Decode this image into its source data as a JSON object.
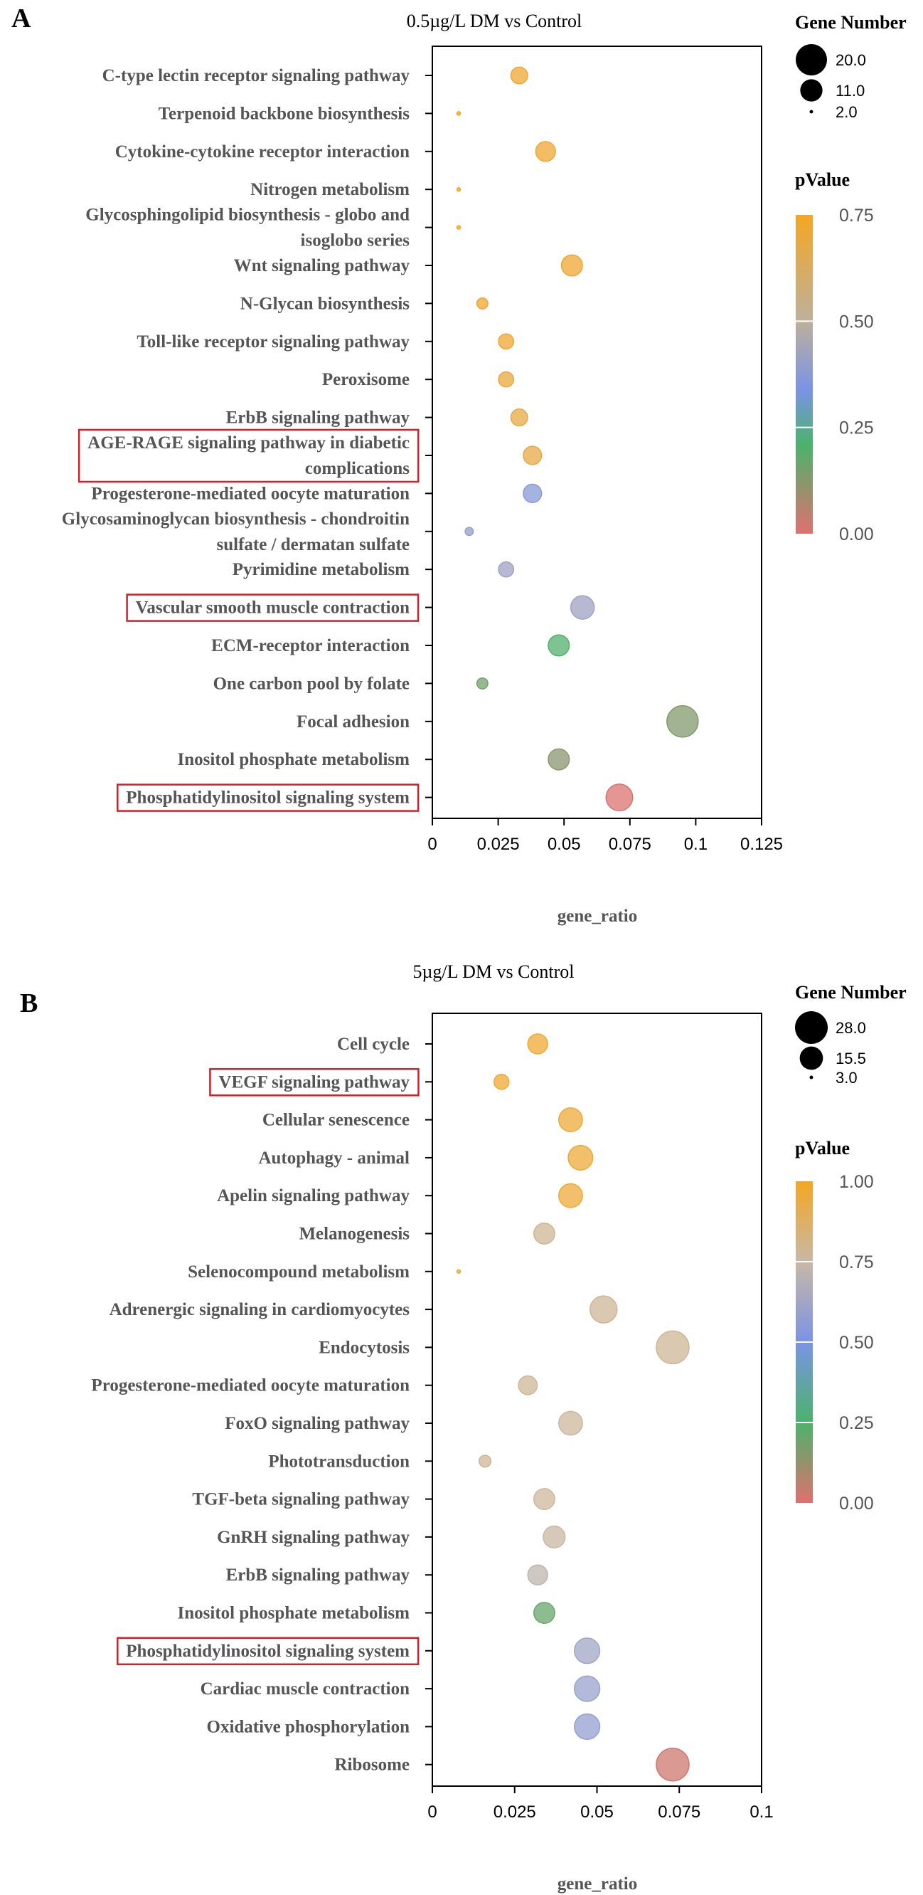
{
  "chart_data": [
    {
      "panel": "A",
      "type": "scatter",
      "title": "0.5µg/L DM vs Control",
      "xlabel": "gene_ratio",
      "xlim": [
        0,
        0.125
      ],
      "xticks": [
        "0",
        "0.025",
        "0.05",
        "0.075",
        "0.1",
        "0.125"
      ],
      "xtick_values": [
        0,
        0.025,
        0.05,
        0.075,
        0.1,
        0.125
      ],
      "size_legend": {
        "title": "Gene Number",
        "values": [
          20,
          11,
          2
        ],
        "labels": [
          "20.0",
          "11.0",
          "2.0"
        ]
      },
      "color_legend": {
        "title": "pValue",
        "min": 0,
        "max": 0.75,
        "labels": [
          "0.75",
          "0.50",
          "0.25",
          "0.00"
        ],
        "label_values": [
          0.75,
          0.5,
          0.25,
          0
        ]
      },
      "points": [
        {
          "pathway": "C-type lectin receptor signaling pathway",
          "gene_ratio": 0.033,
          "gene_number": 7,
          "pvalue": 0.72
        },
        {
          "pathway": "Terpenoid backbone biosynthesis",
          "gene_ratio": 0.01,
          "gene_number": 2,
          "pvalue": 0.75
        },
        {
          "pathway": "Cytokine-cytokine receptor interaction",
          "gene_ratio": 0.043,
          "gene_number": 9,
          "pvalue": 0.72
        },
        {
          "pathway": "Nitrogen metabolism",
          "gene_ratio": 0.01,
          "gene_number": 2,
          "pvalue": 0.75
        },
        {
          "pathway": "Glycosphingolipid biosynthesis - globo and isoglobo series",
          "gene_ratio": 0.01,
          "gene_number": 2,
          "pvalue": 0.75
        },
        {
          "pathway": "Wnt signaling pathway",
          "gene_ratio": 0.053,
          "gene_number": 10,
          "pvalue": 0.72
        },
        {
          "pathway": "N-Glycan biosynthesis",
          "gene_ratio": 0.019,
          "gene_number": 4,
          "pvalue": 0.72
        },
        {
          "pathway": "Toll-like receptor signaling pathway",
          "gene_ratio": 0.028,
          "gene_number": 6,
          "pvalue": 0.72
        },
        {
          "pathway": "Peroxisome",
          "gene_ratio": 0.028,
          "gene_number": 6,
          "pvalue": 0.7
        },
        {
          "pathway": "ErbB signaling pathway",
          "gene_ratio": 0.033,
          "gene_number": 7,
          "pvalue": 0.68
        },
        {
          "pathway": "AGE-RAGE signaling pathway in diabetic complications",
          "gene_ratio": 0.038,
          "gene_number": 8,
          "pvalue": 0.68
        },
        {
          "pathway": "Progesterone-mediated oocyte maturation",
          "gene_ratio": 0.038,
          "gene_number": 8,
          "pvalue": 0.37
        },
        {
          "pathway": "Glycosaminoglycan biosynthesis - chondroitin sulfate / dermatan sulfate",
          "gene_ratio": 0.014,
          "gene_number": 3,
          "pvalue": 0.4
        },
        {
          "pathway": "Pyrimidine metabolism",
          "gene_ratio": 0.028,
          "gene_number": 6,
          "pvalue": 0.42
        },
        {
          "pathway": "Vascular smooth muscle contraction",
          "gene_ratio": 0.057,
          "gene_number": 12,
          "pvalue": 0.42
        },
        {
          "pathway": "ECM-receptor interaction",
          "gene_ratio": 0.048,
          "gene_number": 10,
          "pvalue": 0.2
        },
        {
          "pathway": "One carbon pool by folate",
          "gene_ratio": 0.019,
          "gene_number": 4,
          "pvalue": 0.15
        },
        {
          "pathway": "Focal adhesion",
          "gene_ratio": 0.095,
          "gene_number": 20,
          "pvalue": 0.13
        },
        {
          "pathway": "Inositol phosphate metabolism",
          "gene_ratio": 0.048,
          "gene_number": 10,
          "pvalue": 0.12
        },
        {
          "pathway": "Phosphatidylinositol signaling system",
          "gene_ratio": 0.071,
          "gene_number": 15,
          "pvalue": 0.01
        }
      ],
      "highlighted": [
        "AGE-RAGE signaling pathway in diabetic complications",
        "Vascular smooth muscle contraction",
        "Phosphatidylinositol signaling system"
      ]
    },
    {
      "panel": "B",
      "type": "scatter",
      "title": "5µg/L DM vs Control",
      "xlabel": "gene_ratio",
      "xlim": [
        0,
        0.1
      ],
      "xticks": [
        "0",
        "0.025",
        "0.05",
        "0.075",
        "0.1"
      ],
      "xtick_values": [
        0,
        0.025,
        0.05,
        0.075,
        0.1
      ],
      "size_legend": {
        "title": "Gene Number",
        "values": [
          28,
          15.5,
          3
        ],
        "labels": [
          "28.0",
          "15.5",
          "3.0"
        ]
      },
      "color_legend": {
        "title": "pValue",
        "min": 0,
        "max": 1,
        "labels": [
          "1.00",
          "0.75",
          "0.50",
          "0.25",
          "0.00"
        ],
        "label_values": [
          1,
          0.75,
          0.5,
          0.25,
          0
        ]
      },
      "points": [
        {
          "pathway": "Cell cycle",
          "gene_ratio": 0.032,
          "gene_number": 12,
          "pvalue": 0.97
        },
        {
          "pathway": "VEGF signaling pathway",
          "gene_ratio": 0.021,
          "gene_number": 8,
          "pvalue": 0.97
        },
        {
          "pathway": "Cellular senescence",
          "gene_ratio": 0.042,
          "gene_number": 16,
          "pvalue": 0.96
        },
        {
          "pathway": "Autophagy - animal",
          "gene_ratio": 0.045,
          "gene_number": 17,
          "pvalue": 0.96
        },
        {
          "pathway": "Apelin signaling pathway",
          "gene_ratio": 0.042,
          "gene_number": 16,
          "pvalue": 0.96
        },
        {
          "pathway": "Melanogenesis",
          "gene_ratio": 0.034,
          "gene_number": 13,
          "pvalue": 0.78
        },
        {
          "pathway": "Selenocompound metabolism",
          "gene_ratio": 0.008,
          "gene_number": 3,
          "pvalue": 0.95
        },
        {
          "pathway": "Adrenergic signaling in cardiomyocytes",
          "gene_ratio": 0.052,
          "gene_number": 20,
          "pvalue": 0.78
        },
        {
          "pathway": "Endocytosis",
          "gene_ratio": 0.073,
          "gene_number": 28,
          "pvalue": 0.78
        },
        {
          "pathway": "Progesterone-mediated oocyte maturation",
          "gene_ratio": 0.029,
          "gene_number": 11,
          "pvalue": 0.78
        },
        {
          "pathway": "FoxO signaling pathway",
          "gene_ratio": 0.042,
          "gene_number": 16,
          "pvalue": 0.77
        },
        {
          "pathway": "Phototransduction",
          "gene_ratio": 0.016,
          "gene_number": 6,
          "pvalue": 0.78
        },
        {
          "pathway": "TGF-beta signaling pathway",
          "gene_ratio": 0.034,
          "gene_number": 13,
          "pvalue": 0.77
        },
        {
          "pathway": "GnRH signaling pathway",
          "gene_ratio": 0.037,
          "gene_number": 14,
          "pvalue": 0.76
        },
        {
          "pathway": "ErbB signaling pathway",
          "gene_ratio": 0.032,
          "gene_number": 12,
          "pvalue": 0.72
        },
        {
          "pathway": "Inositol phosphate metabolism",
          "gene_ratio": 0.034,
          "gene_number": 13,
          "pvalue": 0.2
        },
        {
          "pathway": "Phosphatidylinositol signaling system",
          "gene_ratio": 0.047,
          "gene_number": 18,
          "pvalue": 0.62
        },
        {
          "pathway": "Cardiac muscle contraction",
          "gene_ratio": 0.047,
          "gene_number": 18,
          "pvalue": 0.6
        },
        {
          "pathway": "Oxidative phosphorylation",
          "gene_ratio": 0.047,
          "gene_number": 18,
          "pvalue": 0.58
        },
        {
          "pathway": "Ribosome",
          "gene_ratio": 0.073,
          "gene_number": 28,
          "pvalue": 0.03
        }
      ],
      "highlighted": [
        "VEGF signaling pathway",
        "Phosphatidylinositol signaling system"
      ]
    }
  ]
}
